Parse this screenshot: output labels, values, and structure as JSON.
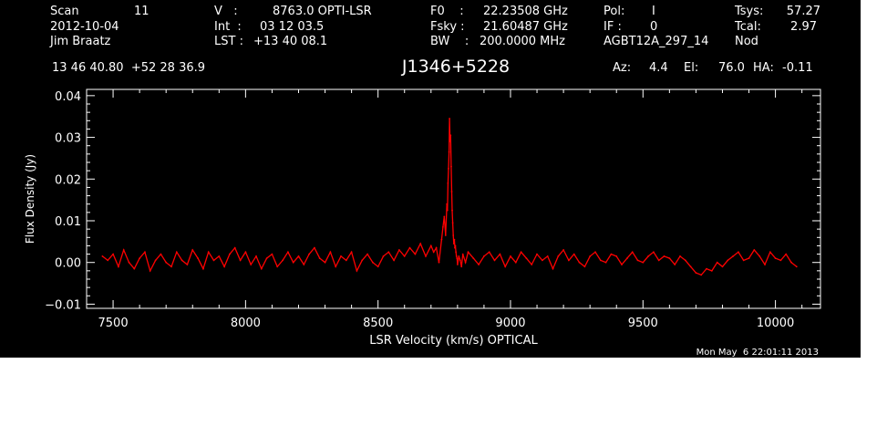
{
  "header": {
    "scan_label": "Scan",
    "scan_value": "11",
    "date": "2012-10-04",
    "observer": "Jim Braatz",
    "v_label": "V   :",
    "v_value": "8763.0 OPTI-LSR",
    "int_label": "Int  :",
    "int_value": "03 12 03.5",
    "lst_label": "LST :",
    "lst_value": "+13 40 08.1",
    "f0_label": "F0    :",
    "f0_value": "22.23508 GHz",
    "fsky_label": "Fsky :",
    "fsky_value": "21.60487 GHz",
    "bw_label": "BW    :",
    "bw_value": "200.0000 MHz",
    "pol_label": "Pol:",
    "pol_value": "I",
    "if_label": "IF :",
    "if_value": "0",
    "project": "AGBT12A_297_14",
    "tsys_label": "Tsys:",
    "tsys_value": "57.27",
    "tcal_label": "Tcal:",
    "tcal_value": "2.97",
    "mode": "Nod",
    "coords": "13 46 40.80  +52 28 36.9",
    "target": "J1346+5228",
    "az_label": "Az:",
    "az_value": "4.4",
    "el_label": "El:",
    "el_value": "76.0",
    "ha_label": "HA:",
    "ha_value": "-0.11"
  },
  "footer": {
    "timestamp": "Mon May  6 22:01:11 2013"
  },
  "colors": {
    "background": "#000000",
    "axes": "#ffffff",
    "trace": "#ff0000"
  },
  "chart_data": {
    "type": "line",
    "title": "J1346+5228",
    "xlabel": "LSR Velocity (km/s) OPTICAL",
    "ylabel": "Flux Density (Jy)",
    "xlim": [
      7400,
      10170
    ],
    "ylim": [
      -0.011,
      0.0415
    ],
    "xticks": [
      7500,
      8000,
      8500,
      9000,
      9500,
      10000
    ],
    "xtick_labels": [
      "7500",
      "8000",
      "8500",
      "9000",
      "9500",
      "10000"
    ],
    "yticks": [
      -0.01,
      0.0,
      0.01,
      0.02,
      0.03,
      0.04
    ],
    "ytick_labels": [
      "−0.01",
      "0.00",
      "0.01",
      "0.02",
      "0.03",
      "0.04"
    ],
    "grid": false,
    "series": [
      {
        "x": [
          7460,
          7480,
          7500,
          7520,
          7540,
          7560,
          7580,
          7600,
          7620,
          7640,
          7660,
          7680,
          7700,
          7720,
          7740,
          7760,
          7780,
          7800,
          7820,
          7840,
          7860,
          7880,
          7900,
          7920,
          7940,
          7960,
          7980,
          8000,
          8020,
          8040,
          8060,
          8080,
          8100,
          8120,
          8140,
          8160,
          8180,
          8200,
          8220,
          8240,
          8260,
          8280,
          8300,
          8320,
          8340,
          8360,
          8380,
          8400,
          8420,
          8440,
          8460,
          8480,
          8500,
          8520,
          8540,
          8560,
          8580,
          8600,
          8620,
          8640,
          8660,
          8680,
          8700,
          8710,
          8720,
          8730,
          8740,
          8745,
          8750,
          8755,
          8760,
          8762,
          8764,
          8766,
          8768,
          8770,
          8772,
          8774,
          8776,
          8778,
          8780,
          8782,
          8784,
          8786,
          8788,
          8790,
          8792,
          8794,
          8796,
          8798,
          8800,
          8805,
          8810,
          8815,
          8820,
          8830,
          8840,
          8860,
          8880,
          8900,
          8920,
          8940,
          8960,
          8980,
          9000,
          9020,
          9040,
          9060,
          9080,
          9100,
          9120,
          9140,
          9160,
          9180,
          9200,
          9220,
          9240,
          9260,
          9280,
          9300,
          9320,
          9340,
          9360,
          9380,
          9400,
          9420,
          9440,
          9460,
          9480,
          9500,
          9520,
          9540,
          9560,
          9580,
          9600,
          9620,
          9640,
          9660,
          9680,
          9700,
          9720,
          9740,
          9760,
          9780,
          9800,
          9820,
          9840,
          9860,
          9880,
          9900,
          9920,
          9940,
          9960,
          9980,
          10000,
          10020,
          10040,
          10060,
          10080
        ],
        "y": [
          0.0015,
          0.0005,
          0.002,
          -0.001,
          0.003,
          0.0,
          -0.0015,
          0.001,
          0.0025,
          -0.002,
          0.0005,
          0.002,
          0.0,
          -0.001,
          0.0025,
          0.0005,
          -0.0005,
          0.003,
          0.001,
          -0.0015,
          0.0025,
          0.0005,
          0.0015,
          -0.001,
          0.002,
          0.0035,
          0.0005,
          0.0025,
          -0.0005,
          0.0015,
          -0.0015,
          0.001,
          0.002,
          -0.001,
          0.0005,
          0.0025,
          0.0,
          0.0015,
          -0.0005,
          0.002,
          0.0035,
          0.001,
          0.0,
          0.0025,
          -0.001,
          0.0015,
          0.0005,
          0.0025,
          -0.002,
          0.0005,
          0.002,
          0.0,
          -0.001,
          0.0015,
          0.0025,
          0.0005,
          0.003,
          0.0015,
          0.0035,
          0.002,
          0.0045,
          0.0015,
          0.004,
          0.0025,
          0.0035,
          0.0,
          0.0055,
          0.0085,
          0.011,
          0.0065,
          0.014,
          0.0125,
          0.019,
          0.0225,
          0.0265,
          0.0345,
          0.029,
          0.0305,
          0.023,
          0.017,
          0.0125,
          0.0095,
          0.0065,
          0.0045,
          0.0055,
          0.0035,
          0.004,
          0.0025,
          0.0015,
          0.001,
          -0.0005,
          0.0015,
          0.0005,
          -0.001,
          0.002,
          0.0,
          0.0025,
          0.001,
          -0.0005,
          0.0015,
          0.0025,
          0.0005,
          0.002,
          -0.001,
          0.0015,
          0.0,
          0.0025,
          0.001,
          -0.0005,
          0.002,
          0.0005,
          0.0015,
          -0.0015,
          0.0015,
          0.003,
          0.0005,
          0.002,
          0.0,
          -0.001,
          0.0015,
          0.0025,
          0.0005,
          0.0,
          0.002,
          0.0015,
          -0.0005,
          0.001,
          0.0025,
          0.0005,
          0.0,
          0.0015,
          0.0025,
          0.0005,
          0.0015,
          0.001,
          -0.0005,
          0.0015,
          0.0005,
          -0.001,
          -0.0025,
          -0.003,
          -0.0015,
          -0.002,
          0.0,
          -0.001,
          0.0005,
          0.0015,
          0.0025,
          0.0005,
          0.001,
          0.003,
          0.0015,
          -0.0005,
          0.0025,
          0.001,
          0.0005,
          0.002,
          0.0,
          -0.001
        ]
      }
    ]
  }
}
